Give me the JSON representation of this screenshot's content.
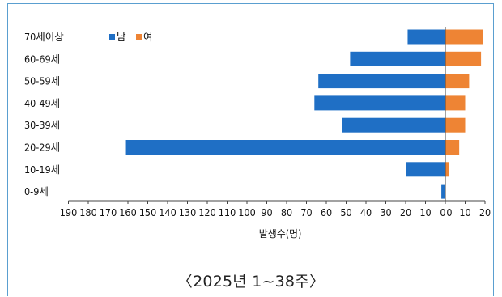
{
  "chart_data": {
    "type": "bar",
    "orientation": "horizontal",
    "layout": "population-pyramid",
    "categories": [
      "70세이상",
      "60-69세",
      "50-59세",
      "40-49세",
      "30-39세",
      "20-29세",
      "10-19세",
      "0-9세"
    ],
    "series": [
      {
        "name": "남",
        "values": [
          19,
          48,
          64,
          66,
          52,
          161,
          20,
          2
        ],
        "color": "#1f6fc5"
      },
      {
        "name": "여",
        "values": [
          19,
          18,
          12,
          10,
          10,
          7,
          2,
          0
        ],
        "color": "#ee8434"
      }
    ],
    "xlabel": "발생수(명)",
    "xlim_left": [
      0,
      190
    ],
    "xlim_right": [
      0,
      20
    ],
    "tick_step": 10,
    "x_ticks": [
      "190",
      "180",
      "170",
      "160",
      "150",
      "140",
      "130",
      "120",
      "110",
      "100",
      "90",
      "80",
      "70",
      "60",
      "50",
      "40",
      "30",
      "20",
      "10",
      "0",
      "0",
      "10",
      "20"
    ],
    "grid": false,
    "legend_position": "top-left"
  },
  "caption": "〈2025년  1~38주〉"
}
